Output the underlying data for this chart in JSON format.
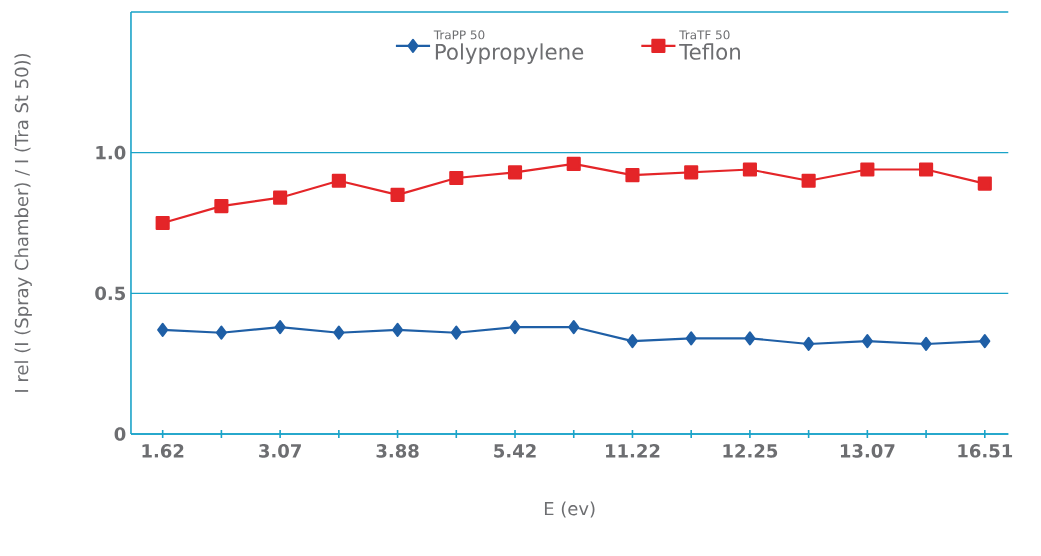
{
  "chart_data": {
    "type": "line",
    "xlabel": "E (ev)",
    "ylabel": "I rel (I (Spray Chamber) / I (Tra St 50))",
    "categories": [
      "1.62",
      null,
      "3.07",
      null,
      "3.88",
      null,
      "5.42",
      null,
      "11.22",
      null,
      "12.25",
      null,
      "13.07",
      null,
      "16.51"
    ],
    "series": [
      {
        "name": "Polypropylene",
        "color": "#1f5fa6",
        "marker": "diamond",
        "values": [
          0.37,
          0.36,
          0.38,
          0.36,
          0.37,
          0.36,
          0.38,
          0.38,
          0.33,
          0.34,
          0.34,
          0.32,
          0.33,
          0.32,
          0.33
        ]
      },
      {
        "name": "Teflon",
        "color": "#e42528",
        "marker": "square",
        "values": [
          0.75,
          0.81,
          0.84,
          0.9,
          0.85,
          0.91,
          0.93,
          0.96,
          0.92,
          0.93,
          0.94,
          0.9,
          0.94,
          0.94,
          0.89
        ]
      }
    ],
    "annotations": [
      "TraPP 50",
      "TraTF 50"
    ],
    "ylim": [
      0,
      1.5
    ],
    "yticks": [
      0,
      0.5,
      {
        "value": 1.0,
        "label": "1.0"
      },
      {
        "value": 1.5,
        "label": null
      }
    ],
    "grid": "y",
    "legend": "top",
    "line_style": "solid"
  }
}
